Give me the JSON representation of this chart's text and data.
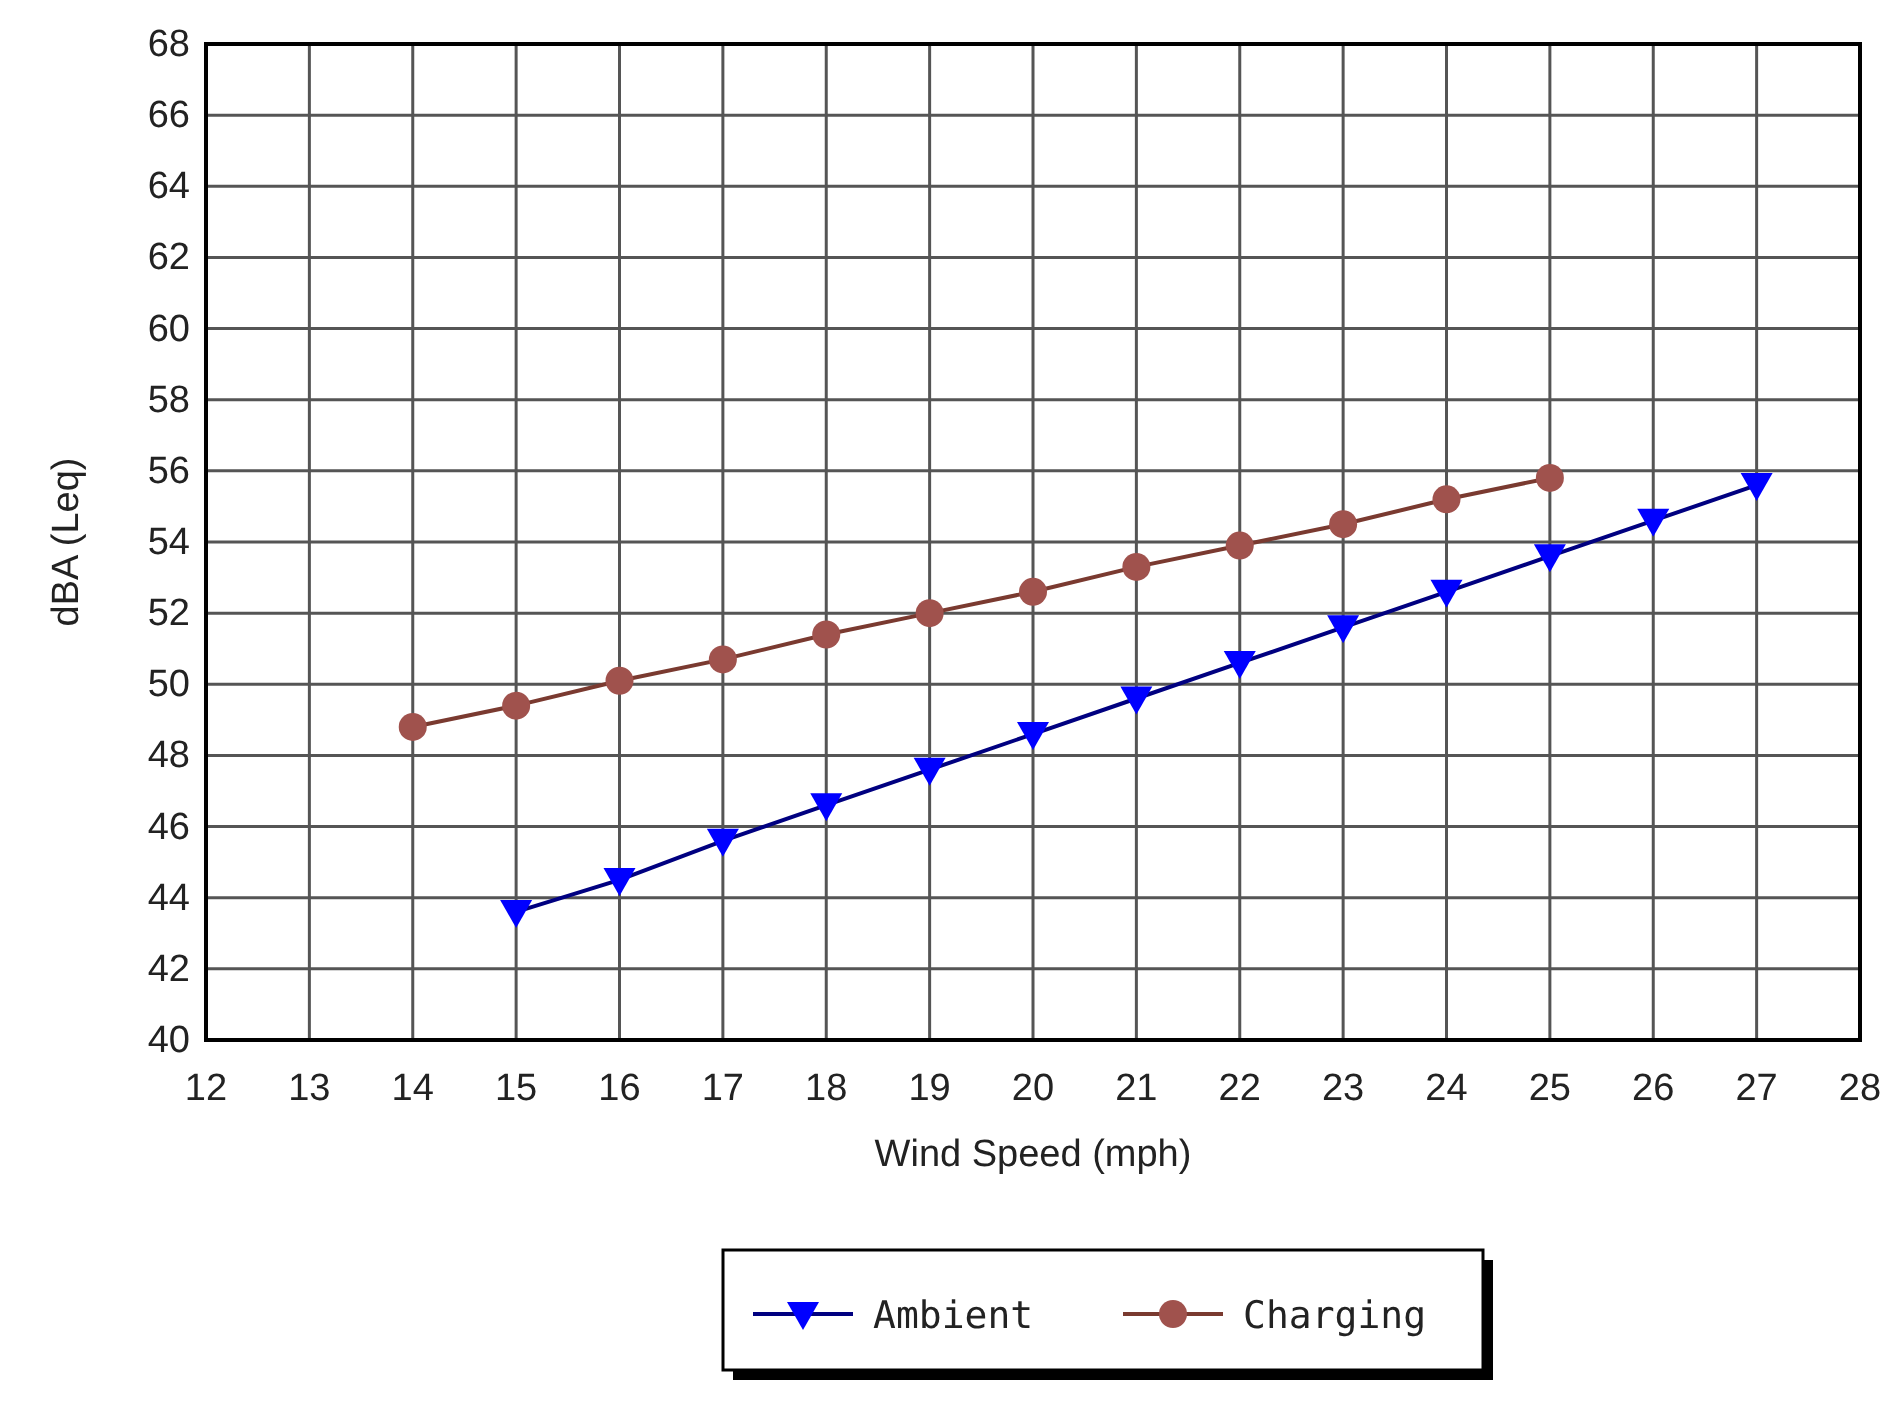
{
  "chart_data": {
    "type": "line",
    "xlabel": "Wind Speed (mph)",
    "ylabel": "dBA (Leq)",
    "xlim": [
      12,
      28
    ],
    "xticks": [
      12,
      13,
      14,
      15,
      16,
      17,
      18,
      19,
      20,
      21,
      22,
      23,
      24,
      25,
      26,
      27,
      28
    ],
    "ylim": [
      40,
      68
    ],
    "yticks": [
      40,
      42,
      44,
      46,
      48,
      50,
      52,
      54,
      56,
      58,
      60,
      62,
      64,
      66,
      68
    ],
    "grid": true,
    "legend": "bottom",
    "series": [
      {
        "name": "Ambient",
        "color": "#0000ff",
        "marker": "triangle-down",
        "x": [
          15,
          16,
          17,
          18,
          19,
          20,
          21,
          22,
          23,
          24,
          25,
          26,
          27
        ],
        "values": [
          43.6,
          44.5,
          45.6,
          46.6,
          47.6,
          48.6,
          49.6,
          50.6,
          51.6,
          52.6,
          53.6,
          54.6,
          55.6
        ]
      },
      {
        "name": "Charging",
        "color": "#a0524d",
        "marker": "circle",
        "x": [
          14,
          15,
          16,
          17,
          18,
          19,
          20,
          21,
          22,
          23,
          24,
          25
        ],
        "values": [
          48.8,
          49.4,
          50.1,
          50.7,
          51.4,
          52.0,
          52.6,
          53.3,
          53.9,
          54.5,
          55.2,
          55.8
        ]
      }
    ]
  }
}
